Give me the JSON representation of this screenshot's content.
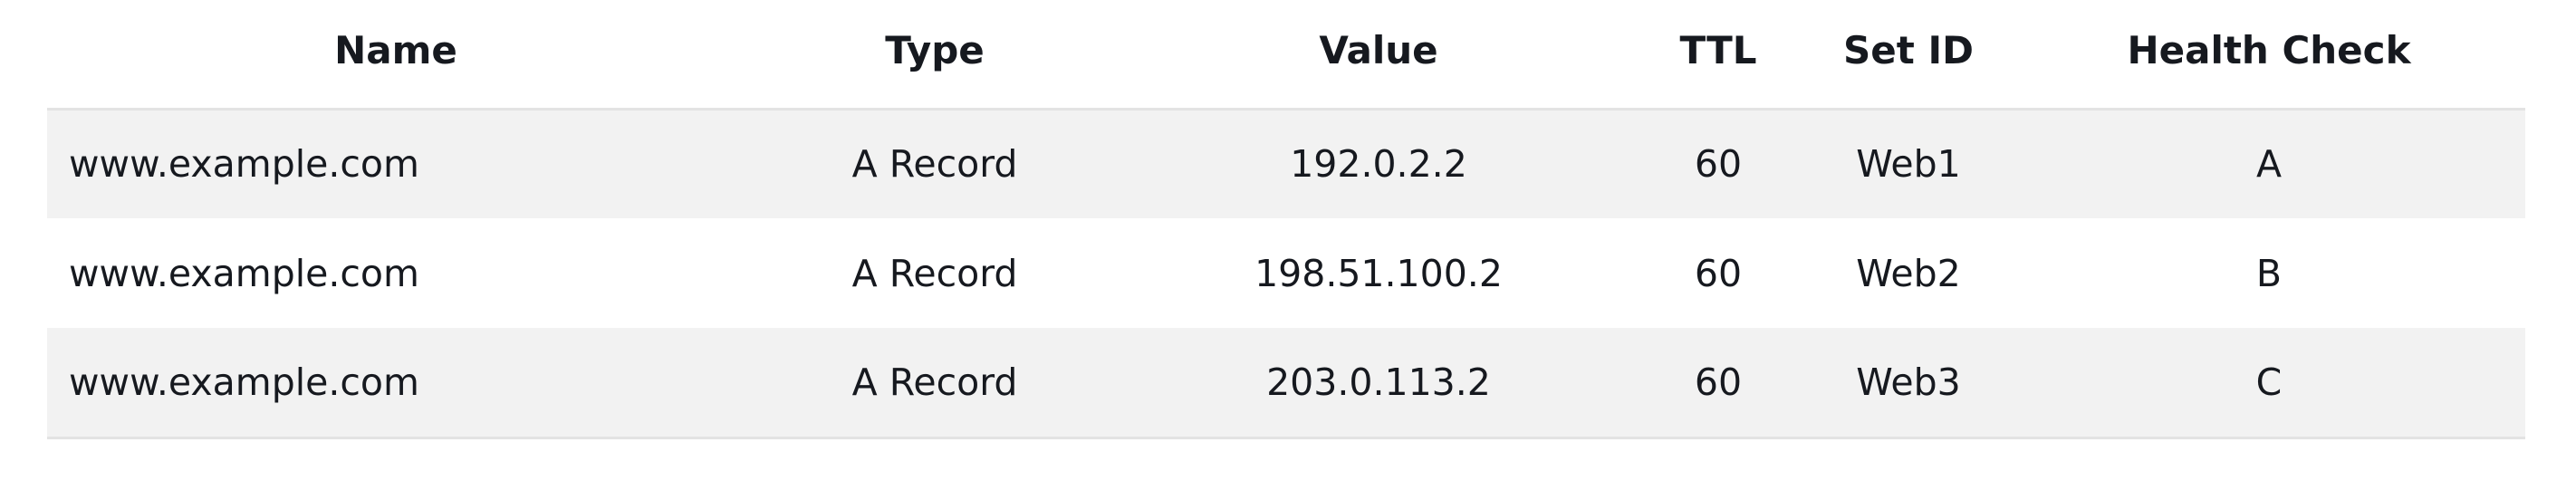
{
  "table": {
    "headers": {
      "name": "Name",
      "type": "Type",
      "value": "Value",
      "ttl": "TTL",
      "set_id": "Set ID",
      "health_check": "Health Check"
    },
    "rows": [
      {
        "name": "www.example.com",
        "type": "A Record",
        "value": "192.0.2.2",
        "ttl": "60",
        "set_id": "Web1",
        "health_check": "A"
      },
      {
        "name": "www.example.com",
        "type": "A Record",
        "value": "198.51.100.2",
        "ttl": "60",
        "set_id": "Web2",
        "health_check": "B"
      },
      {
        "name": "www.example.com",
        "type": "A Record",
        "value": "203.0.113.2",
        "ttl": "60",
        "set_id": "Web3",
        "health_check": "C"
      }
    ]
  },
  "colors": {
    "stripe": "#f2f2f2",
    "border": "#e3e3e3",
    "text": "#16191f"
  }
}
